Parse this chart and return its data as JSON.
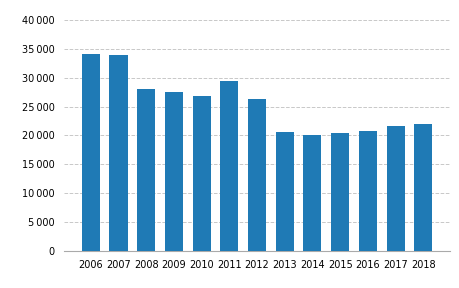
{
  "categories": [
    "2006",
    "2007",
    "2008",
    "2009",
    "2010",
    "2011",
    "2012",
    "2013",
    "2014",
    "2015",
    "2016",
    "2017",
    "2018"
  ],
  "values": [
    34200,
    34000,
    28100,
    27600,
    26900,
    29500,
    26300,
    20600,
    20000,
    20400,
    20800,
    21700,
    21900
  ],
  "bar_color": "#1f7ab5",
  "ylim": [
    0,
    42000
  ],
  "yticks": [
    0,
    5000,
    10000,
    15000,
    20000,
    25000,
    30000,
    35000,
    40000
  ],
  "background_color": "#ffffff",
  "grid_color": "#c8c8c8",
  "bar_width": 0.65,
  "tick_fontsize": 7.0
}
